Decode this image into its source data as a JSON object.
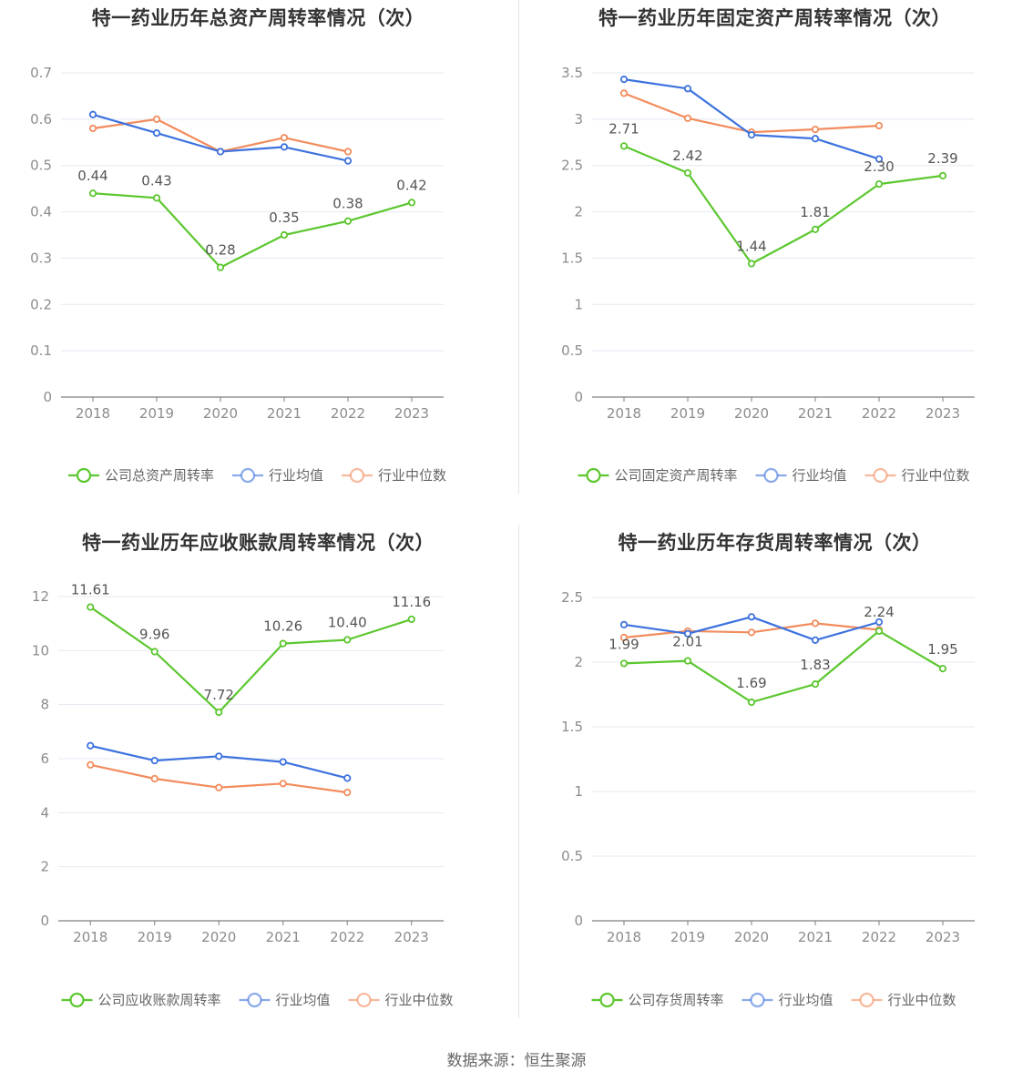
{
  "source_text": "数据来源：恒生聚源",
  "colors": {
    "company": "#5cc72f",
    "industry_avg": "#3d72de",
    "industry_median": "#f28c5d",
    "grid": "#e4e8f0",
    "axis": "#7f7f7f",
    "tick": "#8c8c8c",
    "label": "#555555"
  },
  "chart_data": [
    {
      "type": "line",
      "title": "特一药业历年总资产周转率情况（次）",
      "x": [
        "2018",
        "2019",
        "2020",
        "2021",
        "2022",
        "2023"
      ],
      "ylim": [
        0,
        0.7
      ],
      "yticks": [
        0,
        0.1,
        0.2,
        0.3,
        0.4,
        0.5,
        0.6,
        0.7
      ],
      "ytick_labels": [
        "0",
        "0.1",
        "0.2",
        "0.3",
        "0.4",
        "0.5",
        "0.6",
        "0.7"
      ],
      "grid": true,
      "legend_position": "bottom",
      "series": [
        {
          "name": "公司总资产周转率",
          "color": "#5cc72f",
          "values": [
            0.44,
            0.43,
            0.28,
            0.35,
            0.38,
            0.42
          ],
          "labels": [
            "0.44",
            "0.43",
            "0.28",
            "0.35",
            "0.38",
            "0.42"
          ]
        },
        {
          "name": "行业均值",
          "color": "#3d72de",
          "values": [
            0.61,
            0.57,
            0.53,
            0.54,
            0.51,
            null
          ],
          "labels": null
        },
        {
          "name": "行业中位数",
          "color": "#f28c5d",
          "values": [
            0.58,
            0.6,
            0.53,
            0.56,
            0.53,
            null
          ],
          "labels": null
        }
      ]
    },
    {
      "type": "line",
      "title": "特一药业历年固定资产周转率情况（次）",
      "x": [
        "2018",
        "2019",
        "2020",
        "2021",
        "2022",
        "2023"
      ],
      "ylim": [
        0,
        3.5
      ],
      "yticks": [
        0,
        0.5,
        1,
        1.5,
        2,
        2.5,
        3,
        3.5
      ],
      "ytick_labels": [
        "0",
        "0.5",
        "1",
        "1.5",
        "2",
        "2.5",
        "3",
        "3.5"
      ],
      "grid": true,
      "legend_position": "bottom",
      "series": [
        {
          "name": "公司固定资产周转率",
          "color": "#5cc72f",
          "values": [
            2.71,
            2.42,
            1.44,
            1.81,
            2.3,
            2.39
          ],
          "labels": [
            "2.71",
            "2.42",
            "1.44",
            "1.81",
            "2.30",
            "2.39"
          ]
        },
        {
          "name": "行业均值",
          "color": "#3d72de",
          "values": [
            3.43,
            3.33,
            2.83,
            2.79,
            2.57,
            null
          ],
          "labels": null
        },
        {
          "name": "行业中位数",
          "color": "#f28c5d",
          "values": [
            3.28,
            3.01,
            2.86,
            2.89,
            2.93,
            null
          ],
          "labels": null
        }
      ]
    },
    {
      "type": "line",
      "title": "特一药业历年应收账款周转率情况（次）",
      "x": [
        "2018",
        "2019",
        "2020",
        "2021",
        "2022",
        "2023"
      ],
      "ylim": [
        0,
        12
      ],
      "yticks": [
        0,
        2,
        4,
        6,
        8,
        10,
        12
      ],
      "ytick_labels": [
        "0",
        "2",
        "4",
        "6",
        "8",
        "10",
        "12"
      ],
      "grid": true,
      "legend_position": "bottom",
      "series": [
        {
          "name": "公司应收账款周转率",
          "color": "#5cc72f",
          "values": [
            11.61,
            9.96,
            7.72,
            10.26,
            10.4,
            11.16
          ],
          "labels": [
            "11.61",
            "9.96",
            "7.72",
            "10.26",
            "10.40",
            "11.16"
          ]
        },
        {
          "name": "行业均值",
          "color": "#3d72de",
          "values": [
            6.48,
            5.93,
            6.09,
            5.88,
            5.28,
            null
          ],
          "labels": null
        },
        {
          "name": "行业中位数",
          "color": "#f28c5d",
          "values": [
            5.77,
            5.26,
            4.93,
            5.08,
            4.75,
            null
          ],
          "labels": null
        }
      ]
    },
    {
      "type": "line",
      "title": "特一药业历年存货周转率情况（次）",
      "x": [
        "2018",
        "2019",
        "2020",
        "2021",
        "2022",
        "2023"
      ],
      "ylim": [
        0,
        2.5
      ],
      "yticks": [
        0,
        0.5,
        1,
        1.5,
        2,
        2.5
      ],
      "ytick_labels": [
        "0",
        "0.5",
        "1",
        "1.5",
        "2",
        "2.5"
      ],
      "grid": true,
      "legend_position": "bottom",
      "series": [
        {
          "name": "公司存货周转率",
          "color": "#5cc72f",
          "values": [
            1.99,
            2.01,
            1.69,
            1.83,
            2.24,
            1.95
          ],
          "labels": [
            "1.99",
            "2.01",
            "1.69",
            "1.83",
            "2.24",
            "1.95"
          ]
        },
        {
          "name": "行业均值",
          "color": "#3d72de",
          "values": [
            2.29,
            2.22,
            2.35,
            2.17,
            2.31,
            null
          ],
          "labels": null
        },
        {
          "name": "行业中位数",
          "color": "#f28c5d",
          "values": [
            2.19,
            2.24,
            2.23,
            2.3,
            2.25,
            null
          ],
          "labels": null
        }
      ]
    }
  ]
}
